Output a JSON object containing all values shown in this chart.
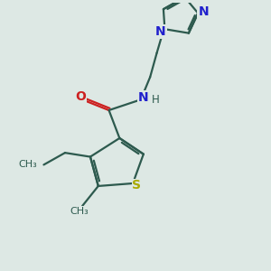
{
  "bg_color": "#dde8e4",
  "bond_color": "#2d5a4e",
  "N_color": "#2020cc",
  "O_color": "#cc2020",
  "S_color": "#aaaa00",
  "line_width": 1.6,
  "fig_size": [
    3.0,
    3.0
  ],
  "dpi": 100,
  "xlim": [
    0,
    10
  ],
  "ylim": [
    0,
    10
  ]
}
